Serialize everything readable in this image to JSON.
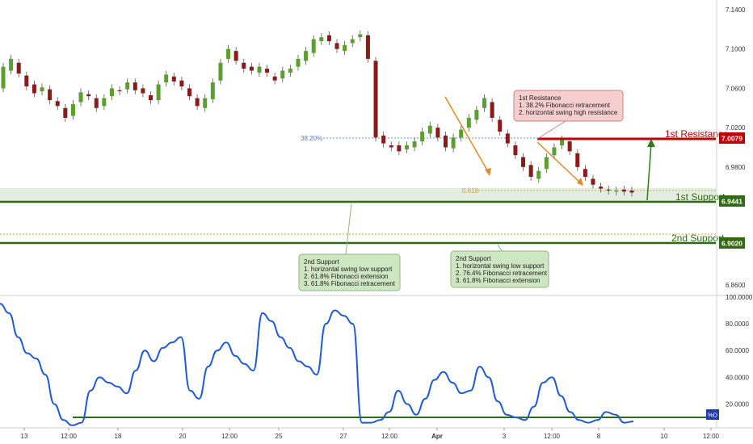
{
  "chart_data": [
    {
      "type": "candlestick",
      "pair_hint": "",
      "title": "",
      "price_axis": {
        "ticks": [
          "7.1400",
          "7.1000",
          "7.0600",
          "7.0200",
          "6.9800",
          "6.8600"
        ],
        "range": [
          6.84,
          7.15
        ]
      },
      "time_axis": {
        "labels": [
          "13",
          "12:00",
          "18",
          "20",
          "12:00",
          "25",
          "27",
          "12:00",
          "Apr",
          "3",
          "12:00",
          "8",
          "10",
          "12:00"
        ]
      },
      "levels": {
        "first_resistance": {
          "label": "1st Resistance",
          "value": "7.0079",
          "color": "#c00000"
        },
        "first_support": {
          "label": "1st Support",
          "value": "6.9441",
          "color": "#2e6b12"
        },
        "second_support": {
          "label": "2nd Support",
          "value": "6.9020",
          "color": "#2e6b12"
        },
        "fib_382": {
          "label": "38.20%",
          "value": 7.0085
        },
        "fib_618": {
          "label": "0.618",
          "value": 6.958
        },
        "orange_dotted": {
          "value": 6.913
        }
      },
      "annotations": {
        "resistance_box": {
          "title": "1st Resistance",
          "lines": [
            "1. 38.2% Fibonacci retracement",
            "2. horizontal swing high resistance"
          ]
        },
        "support_box_1": {
          "title": "2nd Support",
          "lines": [
            "1. horizontal swing low support",
            "2. 61.8% Fibonacci extension",
            "3. 61.8% Fibonacci retracement"
          ]
        },
        "support_box_2": {
          "title": "2nd Support",
          "lines": [
            "1. horizontal swing low support",
            "2. 76.4% Fibonacci retracement",
            "3. 61.8% Fibonacci extension"
          ]
        }
      },
      "series": [
        {
          "values": [
            [
              7.06,
              7.082
            ],
            [
              7.078,
              7.09
            ],
            [
              7.086,
              7.075
            ],
            [
              7.073,
              7.062
            ],
            [
              7.064,
              7.055
            ],
            [
              7.057,
              7.061
            ],
            [
              7.059,
              7.048
            ],
            [
              7.047,
              7.042
            ],
            [
              7.04,
              7.03
            ],
            [
              7.032,
              7.044
            ],
            [
              7.046,
              7.056
            ],
            [
              7.054,
              7.052
            ],
            [
              7.05,
              7.04
            ],
            [
              7.042,
              7.05
            ],
            [
              7.052,
              7.06
            ],
            [
              7.058,
              7.057
            ],
            [
              7.059,
              7.066
            ],
            [
              7.066,
              7.058
            ],
            [
              7.06,
              7.055
            ],
            [
              7.053,
              7.048
            ],
            [
              7.048,
              7.064
            ],
            [
              7.066,
              7.074
            ],
            [
              7.072,
              7.067
            ],
            [
              7.068,
              7.062
            ],
            [
              7.06,
              7.052
            ],
            [
              7.05,
              7.042
            ],
            [
              7.04,
              7.05
            ],
            [
              7.049,
              7.066
            ],
            [
              7.068,
              7.086
            ],
            [
              7.09,
              7.1
            ],
            [
              7.098,
              7.088
            ],
            [
              7.086,
              7.08
            ],
            [
              7.082,
              7.078
            ],
            [
              7.076,
              7.082
            ],
            [
              7.08,
              7.076
            ],
            [
              7.072,
              7.068
            ],
            [
              7.07,
              7.078
            ],
            [
              7.076,
              7.08
            ],
            [
              7.082,
              7.09
            ],
            [
              7.088,
              7.098
            ],
            [
              7.096,
              7.11
            ],
            [
              7.108,
              7.112
            ],
            [
              7.114,
              7.108
            ],
            [
              7.106,
              7.1
            ],
            [
              7.098,
              7.104
            ],
            [
              7.106,
              7.11
            ],
            [
              7.112,
              7.115
            ],
            [
              7.114,
              7.09
            ],
            [
              7.088,
              7.01
            ],
            [
              7.012,
              7.004
            ],
            [
              7.002,
              7.0
            ],
            [
              7.002,
              6.996
            ],
            [
              6.998,
              7.002
            ],
            [
              7.0,
              7.006
            ],
            [
              7.006,
              7.016
            ],
            [
              7.014,
              7.022
            ],
            [
              7.02,
              7.01
            ],
            [
              7.012,
              7.0
            ],
            [
              6.999,
              7.01
            ],
            [
              7.01,
              7.018
            ],
            [
              7.02,
              7.03
            ],
            [
              7.028,
              7.038
            ],
            [
              7.04,
              7.05
            ],
            [
              7.046,
              7.03
            ],
            [
              7.028,
              7.016
            ],
            [
              7.014,
              7.004
            ],
            [
              7.002,
              6.992
            ],
            [
              6.99,
              6.98
            ],
            [
              6.982,
              6.97
            ],
            [
              6.968,
              6.976
            ],
            [
              6.978,
              6.99
            ],
            [
              6.992,
              7.0
            ],
            [
              7.002,
              7.008
            ],
            [
              7.006,
              6.996
            ],
            [
              6.994,
              6.98
            ],
            [
              6.978,
              6.97
            ],
            [
              6.968,
              6.962
            ],
            [
              6.96,
              6.958
            ],
            [
              6.957,
              6.956
            ],
            [
              6.955,
              6.956
            ],
            [
              6.957,
              6.955
            ],
            [
              6.956,
              6.954
            ]
          ]
        },
        {
          "name": "%D",
          "type": "line",
          "range": [
            0,
            100
          ],
          "ticks": [
            "100.0000",
            "80.0000",
            "60.0000",
            "40.0000",
            "20.0000"
          ],
          "end_label": "%D",
          "values": [
            95,
            88,
            70,
            58,
            54,
            42,
            20,
            8,
            4,
            6,
            30,
            40,
            36,
            33,
            28,
            45,
            60,
            52,
            62,
            66,
            70,
            30,
            24,
            48,
            60,
            66,
            56,
            50,
            45,
            88,
            82,
            70,
            62,
            52,
            48,
            42,
            80,
            90,
            86,
            80,
            6,
            6,
            8,
            14,
            30,
            20,
            12,
            24,
            38,
            44,
            36,
            28,
            30,
            48,
            40,
            22,
            12,
            10,
            8,
            18,
            36,
            40,
            26,
            14,
            8,
            6,
            8,
            14,
            12,
            6,
            7
          ]
        }
      ]
    }
  ]
}
